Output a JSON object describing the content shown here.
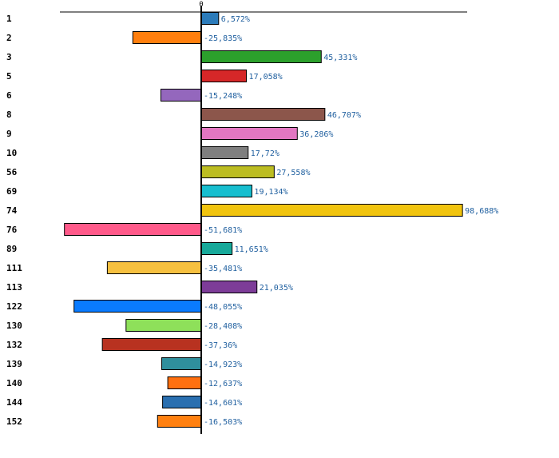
{
  "chart_data": {
    "type": "bar",
    "orientation": "horizontal",
    "title": "",
    "xlabel": "",
    "ylabel": "",
    "grid": false,
    "xlim": [
      -58,
      100
    ],
    "zero_tick_label": "0",
    "value_suffix": "%",
    "categories": [
      "1",
      "2",
      "3",
      "5",
      "6",
      "8",
      "9",
      "10",
      "56",
      "69",
      "74",
      "76",
      "89",
      "111",
      "113",
      "122",
      "130",
      "132",
      "139",
      "140",
      "144",
      "152"
    ],
    "values": [
      6.572,
      -25.835,
      45.331,
      17.058,
      -15.248,
      46.707,
      36.286,
      17.72,
      27.558,
      19.134,
      98.688,
      -51.681,
      11.651,
      -35.481,
      21.035,
      -48.055,
      -28.408,
      -37.36,
      -14.923,
      -12.637,
      -14.601,
      -16.503
    ],
    "value_labels": [
      "6,572%",
      "-25,835%",
      "45,331%",
      "17,058%",
      "-15,248%",
      "46,707%",
      "36,286%",
      "17,72%",
      "27,558%",
      "19,134%",
      "98,688%",
      "-51,681%",
      "11,651%",
      "-35,481%",
      "21,035%",
      "-48,055%",
      "-28,408%",
      "-37,36%",
      "-14,923%",
      "-12,637%",
      "-14,601%",
      "-16,503%"
    ],
    "colors": [
      "#2b7bba",
      "#ff7f0e",
      "#2ca02c",
      "#d62728",
      "#9467bd",
      "#8c564b",
      "#e377c2",
      "#7f7f7f",
      "#bcbd22",
      "#17becf",
      "#f1c40f",
      "#ff5a8a",
      "#17a99a",
      "#f6c040",
      "#7d3c98",
      "#0a7bff",
      "#8ee05a",
      "#b83220",
      "#2f8f9d",
      "#ff7010",
      "#2a6fb0",
      "#ff8010"
    ]
  }
}
